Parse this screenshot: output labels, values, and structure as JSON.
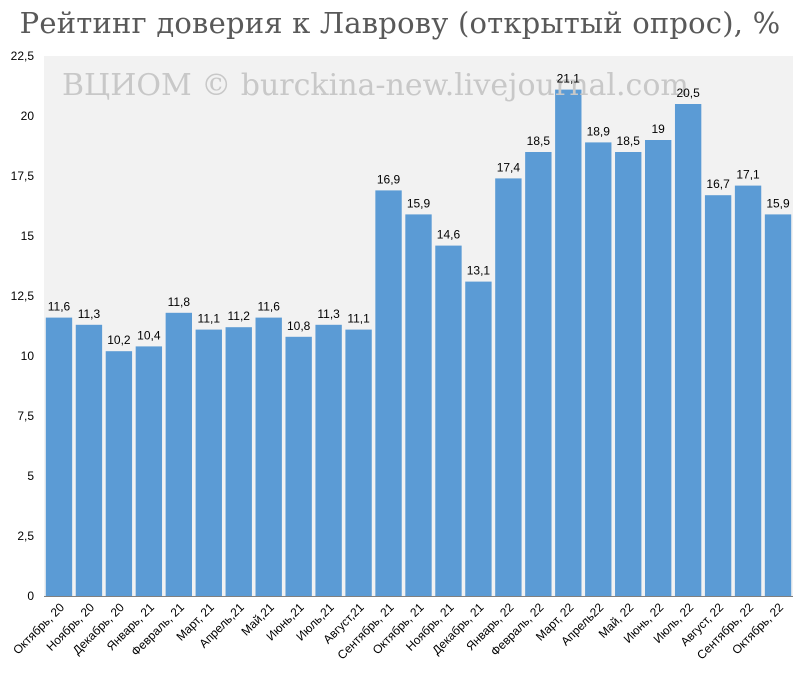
{
  "title": "Рейтинг доверия к Лаврову (открытый опрос), %",
  "watermark": "ВЦИОМ © burckina-new.livejournal.com",
  "colors": {
    "bar": "#5b9bd5",
    "plot_background": "#f2f2f2",
    "axis": "#808080"
  },
  "chart_data": {
    "type": "bar",
    "title": "Рейтинг доверия к Лаврову (открытый опрос), %",
    "xlabel": "",
    "ylabel": "",
    "ylim": [
      0,
      22.5
    ],
    "yticks": [
      "0",
      "2,5",
      "5",
      "7,5",
      "10",
      "12,5",
      "15",
      "17,5",
      "20",
      "22,5"
    ],
    "ytick_values": [
      0,
      2.5,
      5,
      7.5,
      10,
      12.5,
      15,
      17.5,
      20,
      22.5
    ],
    "grid": false,
    "legend": "none",
    "categories": [
      "Октябрь, 20",
      "Ноябрь, 20",
      "Декабрь, 20",
      "Январь, 21",
      "Февраль, 21",
      "Март, 21",
      "Апрель,21",
      "Май,21",
      "Июнь,21",
      "Июль,21",
      "Август,21",
      "Сентябрь, 21",
      "Октябрь, 21",
      "Ноябрь, 21",
      "Декабрь, 21",
      "Январь, 22",
      "Февраль, 22",
      "Март, 22",
      "Апрель22",
      "Май, 22",
      "Июнь, 22",
      "Июль, 22",
      "Август, 22",
      "Сентябрь, 22",
      "Октябрь, 22"
    ],
    "values": [
      11.6,
      11.3,
      10.2,
      10.4,
      11.8,
      11.1,
      11.2,
      11.6,
      10.8,
      11.3,
      11.1,
      16.9,
      15.9,
      14.6,
      13.1,
      17.4,
      18.5,
      21.1,
      18.9,
      18.5,
      19,
      20.5,
      16.7,
      17.1,
      15.9
    ],
    "data_labels": [
      "11,6",
      "11,3",
      "10,2",
      "10,4",
      "11,8",
      "11,1",
      "11,2",
      "11,6",
      "10,8",
      "11,3",
      "11,1",
      "16,9",
      "15,9",
      "14,6",
      "13,1",
      "17,4",
      "18,5",
      "21,1",
      "18,9",
      "18,5",
      "19",
      "20,5",
      "16,7",
      "17,1",
      "15,9"
    ]
  }
}
